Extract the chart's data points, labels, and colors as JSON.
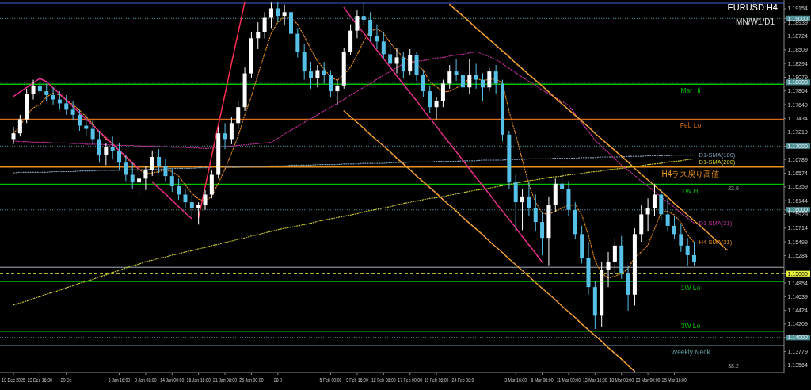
{
  "chart_data": {
    "type": "candlestick",
    "title": "EURUSD H4",
    "subtitle": "MN/W1/D1",
    "categories": [
      "19 Dec 2025",
      null,
      null,
      null,
      "23 Dec 16:00",
      null,
      null,
      null,
      "29 De",
      null,
      null,
      null,
      null,
      null,
      null,
      null,
      "6 Jan 16:00",
      null,
      null,
      null,
      "9 Jan 08:00",
      null,
      null,
      null,
      "14 Jan 00:00",
      null,
      null,
      null,
      "16 Jan 16:00",
      null,
      null,
      null,
      "21 Jan 08:00",
      null,
      null,
      null,
      "26 Jan 00:00",
      null,
      null,
      null,
      "28 J",
      null,
      null,
      null,
      null,
      null,
      null,
      null,
      "5 Feb 00:00",
      null,
      null,
      null,
      "9 Feb 16:00",
      null,
      null,
      null,
      "12 Feb 08:00",
      null,
      null,
      null,
      "17 Feb 00:00",
      null,
      null,
      null,
      "19 Feb 16:00",
      null,
      null,
      null,
      "24 Feb 08:0",
      null,
      null,
      null,
      null,
      null,
      null,
      null,
      "3 Mar 16:00",
      null,
      null,
      null,
      "6 Mar 08:00",
      null,
      null,
      null,
      "11 Mar 00:00",
      null,
      null,
      null,
      "13 Mar 16:00",
      null,
      null,
      null,
      "18 Mar 08:00",
      null,
      null,
      null,
      "23 Mar 00:00",
      null,
      null,
      null,
      "25 Mar 16:00",
      null,
      null,
      null,
      null,
      null,
      null,
      null,
      null,
      null,
      null,
      null,
      null,
      null,
      null,
      null,
      null
    ],
    "ohlc": [
      [
        1.1711,
        1.173,
        1.1703,
        1.172
      ],
      [
        1.172,
        1.1749,
        1.1715,
        1.1742
      ],
      [
        1.1742,
        1.179,
        1.1736,
        1.1782
      ],
      [
        1.1782,
        1.1804,
        1.1773,
        1.1795
      ],
      [
        1.1795,
        1.1809,
        1.178,
        1.1786
      ],
      [
        1.1786,
        1.1798,
        1.177,
        1.178
      ],
      [
        1.178,
        1.1792,
        1.1765,
        1.1773
      ],
      [
        1.1773,
        1.1786,
        1.1757,
        1.1767
      ],
      [
        1.1767,
        1.178,
        1.1749,
        1.1757
      ],
      [
        1.1757,
        1.177,
        1.174,
        1.1749
      ],
      [
        1.1749,
        1.1757,
        1.1724,
        1.1732
      ],
      [
        1.1732,
        1.1749,
        1.1715,
        1.1727
      ],
      [
        1.1727,
        1.1742,
        1.1703,
        1.1711
      ],
      [
        1.1711,
        1.1724,
        1.1674,
        1.1686
      ],
      [
        1.1686,
        1.1705,
        1.167,
        1.1699
      ],
      [
        1.1699,
        1.1715,
        1.168,
        1.1693
      ],
      [
        1.1693,
        1.1705,
        1.1662,
        1.1674
      ],
      [
        1.1674,
        1.1686,
        1.1645,
        1.1655
      ],
      [
        1.1655,
        1.1674,
        1.1633,
        1.1643
      ],
      [
        1.1643,
        1.1655,
        1.1621,
        1.1649
      ],
      [
        1.1649,
        1.1668,
        1.1631,
        1.1662
      ],
      [
        1.1662,
        1.1693,
        1.1653,
        1.1683
      ],
      [
        1.1683,
        1.1695,
        1.1658,
        1.1668
      ],
      [
        1.1668,
        1.168,
        1.1645,
        1.1653
      ],
      [
        1.1653,
        1.1665,
        1.1628,
        1.1637
      ],
      [
        1.1637,
        1.1649,
        1.1616,
        1.1624
      ],
      [
        1.1624,
        1.1633,
        1.1603,
        1.1612
      ],
      [
        1.1612,
        1.1624,
        1.1591,
        1.1603
      ],
      [
        1.1603,
        1.1612,
        1.1577,
        1.1608
      ],
      [
        1.1608,
        1.1631,
        1.16,
        1.1624
      ],
      [
        1.1624,
        1.1662,
        1.1618,
        1.1655
      ],
      [
        1.1655,
        1.173,
        1.1649,
        1.172
      ],
      [
        1.172,
        1.1736,
        1.1695,
        1.1711
      ],
      [
        1.1711,
        1.1745,
        1.1703,
        1.1736
      ],
      [
        1.1736,
        1.177,
        1.1727,
        1.1761
      ],
      [
        1.1761,
        1.1823,
        1.1755,
        1.1814
      ],
      [
        1.1814,
        1.1879,
        1.1807,
        1.1869
      ],
      [
        1.1869,
        1.1894,
        1.1852,
        1.1879
      ],
      [
        1.1879,
        1.191,
        1.1869,
        1.1901
      ],
      [
        1.1901,
        1.1925,
        1.1885,
        1.1916
      ],
      [
        1.1916,
        1.1926,
        1.1894,
        1.1904
      ],
      [
        1.1904,
        1.1922,
        1.1889,
        1.191
      ],
      [
        1.191,
        1.1919,
        1.1869,
        1.1876
      ],
      [
        1.1876,
        1.1885,
        1.1839,
        1.1848
      ],
      [
        1.1848,
        1.186,
        1.1804,
        1.1817
      ],
      [
        1.1817,
        1.1832,
        1.179,
        1.1807
      ],
      [
        1.1807,
        1.1827,
        1.1792,
        1.1819
      ],
      [
        1.1819,
        1.1832,
        1.1798,
        1.1811
      ],
      [
        1.1811,
        1.1819,
        1.1777,
        1.1786
      ],
      [
        1.1786,
        1.1804,
        1.1765,
        1.1795
      ],
      [
        1.1795,
        1.1854,
        1.179,
        1.1848
      ],
      [
        1.1848,
        1.1891,
        1.1842,
        1.1881
      ],
      [
        1.1881,
        1.1914,
        1.1869,
        1.1904
      ],
      [
        1.1904,
        1.1925,
        1.1889,
        1.1898
      ],
      [
        1.1898,
        1.191,
        1.1864,
        1.1873
      ],
      [
        1.1873,
        1.1891,
        1.1852,
        1.1864
      ],
      [
        1.1864,
        1.1879,
        1.1836,
        1.1844
      ],
      [
        1.1844,
        1.186,
        1.1819,
        1.1829
      ],
      [
        1.1829,
        1.1854,
        1.1814,
        1.1839
      ],
      [
        1.1839,
        1.1848,
        1.1807,
        1.1817
      ],
      [
        1.1817,
        1.1852,
        1.1811,
        1.1842
      ],
      [
        1.1842,
        1.1848,
        1.1802,
        1.1811
      ],
      [
        1.1811,
        1.1819,
        1.1777,
        1.1786
      ],
      [
        1.1786,
        1.1795,
        1.1752,
        1.1761
      ],
      [
        1.1761,
        1.1777,
        1.1742,
        1.177
      ],
      [
        1.177,
        1.1804,
        1.1761,
        1.1798
      ],
      [
        1.1798,
        1.1827,
        1.179,
        1.1817
      ],
      [
        1.1817,
        1.1836,
        1.1802,
        1.1811
      ],
      [
        1.1811,
        1.1819,
        1.1777,
        1.1792
      ],
      [
        1.1792,
        1.1837,
        1.1782,
        1.1811
      ],
      [
        1.1811,
        1.1829,
        1.179,
        1.1804
      ],
      [
        1.1804,
        1.1814,
        1.177,
        1.1792
      ],
      [
        1.1792,
        1.1823,
        1.1786,
        1.1817
      ],
      [
        1.1817,
        1.1827,
        1.1782,
        1.1798
      ],
      [
        1.1798,
        1.1804,
        1.1708,
        1.1718
      ],
      [
        1.1718,
        1.1724,
        1.1633,
        1.1643
      ],
      [
        1.1643,
        1.1655,
        1.1566,
        1.1612
      ],
      [
        1.1612,
        1.1633,
        1.1568,
        1.1621
      ],
      [
        1.1621,
        1.1645,
        1.1591,
        1.1603
      ],
      [
        1.1603,
        1.1624,
        1.1566,
        1.1581
      ],
      [
        1.1581,
        1.1596,
        1.1529,
        1.1556
      ],
      [
        1.1556,
        1.1621,
        1.1513,
        1.1608
      ],
      [
        1.1608,
        1.1649,
        1.1596,
        1.1641
      ],
      [
        1.1641,
        1.1668,
        1.1624,
        1.1633
      ],
      [
        1.1633,
        1.1645,
        1.1591,
        1.16
      ],
      [
        1.16,
        1.1612,
        1.1554,
        1.1562
      ],
      [
        1.1562,
        1.1575,
        1.1516,
        1.1525
      ],
      [
        1.1525,
        1.155,
        1.1467,
        1.1479
      ],
      [
        1.1479,
        1.1488,
        1.1413,
        1.1434
      ],
      [
        1.1434,
        1.1519,
        1.1417,
        1.1506
      ],
      [
        1.1506,
        1.1534,
        1.1479,
        1.1519
      ],
      [
        1.1519,
        1.1556,
        1.15,
        1.1544
      ],
      [
        1.1544,
        1.1559,
        1.1492,
        1.15
      ],
      [
        1.15,
        1.1513,
        1.1442,
        1.1467
      ],
      [
        1.1467,
        1.1571,
        1.145,
        1.1562
      ],
      [
        1.1562,
        1.1608,
        1.155,
        1.1593
      ],
      [
        1.1593,
        1.1618,
        1.1566,
        1.1603
      ],
      [
        1.1603,
        1.1641,
        1.1591,
        1.1624
      ],
      [
        1.1624,
        1.1633,
        1.1583,
        1.1593
      ],
      [
        1.1593,
        1.1618,
        1.1566,
        1.1575
      ],
      [
        1.1575,
        1.1591,
        1.1554,
        1.1562
      ],
      [
        1.1562,
        1.1578,
        1.1534,
        1.1544
      ],
      [
        1.1544,
        1.1556,
        1.1513,
        1.1529
      ],
      [
        1.1529,
        1.155,
        1.1513,
        1.1519
      ],
      null,
      null,
      null,
      null,
      null,
      null,
      null,
      null,
      null,
      null,
      null,
      null,
      null
    ],
    "colors": [
      "#ffffff",
      "#ffffff",
      "#ffffff",
      "#ffffff",
      "#56c0e6",
      "#56c0e6",
      "#56c0e6",
      "#56c0e6",
      "#56c0e6",
      "#56c0e6",
      "#56c0e6",
      "#56c0e6",
      "#56c0e6",
      "#56c0e6",
      "#ffffff",
      "#56c0e6",
      "#56c0e6",
      "#56c0e6",
      "#56c0e6",
      "#ffffff",
      "#ffffff",
      "#ffffff",
      "#56c0e6",
      "#56c0e6",
      "#56c0e6",
      "#56c0e6",
      "#56c0e6",
      "#56c0e6",
      "#ffffff",
      "#ffffff",
      "#ffffff",
      "#ffffff",
      "#56c0e6",
      "#ffffff",
      "#ffffff",
      "#ffffff",
      "#ffffff",
      "#ffffff",
      "#ffffff",
      "#ffffff",
      "#56c0e6",
      "#ffffff",
      "#56c0e6",
      "#56c0e6",
      "#56c0e6",
      "#56c0e6",
      "#ffffff",
      "#56c0e6",
      "#56c0e6",
      "#ffffff",
      "#ffffff",
      "#ffffff",
      "#ffffff",
      "#56c0e6",
      "#56c0e6",
      "#56c0e6",
      "#56c0e6",
      "#56c0e6",
      "#ffffff",
      "#56c0e6",
      "#ffffff",
      "#56c0e6",
      "#56c0e6",
      "#56c0e6",
      "#ffffff",
      "#ffffff",
      "#ffffff",
      "#56c0e6",
      "#56c0e6",
      "#ffffff",
      "#56c0e6",
      "#56c0e6",
      "#ffffff",
      "#56c0e6",
      "#56c0e6",
      "#56c0e6",
      "#56c0e6",
      "#ffffff",
      "#56c0e6",
      "#56c0e6",
      "#56c0e6",
      "#ffffff",
      "#ffffff",
      "#56c0e6",
      "#56c0e6",
      "#56c0e6",
      "#56c0e6",
      "#56c0e6",
      "#56c0e6",
      "#ffffff",
      "#ffffff",
      "#ffffff",
      "#56c0e6",
      "#56c0e6",
      "#ffffff",
      "#ffffff",
      "#ffffff",
      "#ffffff",
      "#56c0e6",
      "#56c0e6",
      "#56c0e6",
      "#56c0e6",
      "#56c0e6",
      "#56c0e6",
      null,
      null,
      null,
      null,
      null,
      null,
      null,
      null,
      null,
      null,
      null,
      null,
      null
    ],
    "series": [
      {
        "name": "D1-SMA(100)",
        "type": "line",
        "color": "#7d9cb8",
        "line_style": "dotted",
        "values": [
          1.1658,
          1.1659,
          1.1659,
          1.1659,
          1.1659,
          1.1659,
          1.166,
          1.166,
          1.166,
          1.166,
          1.1661,
          1.1661,
          1.1661,
          1.1662,
          1.1662,
          1.1662,
          1.1662,
          1.1663,
          1.1663,
          1.1663,
          1.1663,
          1.1664,
          1.1664,
          1.1664,
          1.1665,
          1.1665,
          1.1665,
          1.1665,
          1.1666,
          1.1666,
          1.1666,
          null,
          1.1667,
          1.1667,
          1.1667,
          1.1668,
          1.1668,
          1.1668,
          1.1668,
          1.1669,
          1.1669,
          1.1669,
          1.167,
          1.167,
          1.167,
          1.167,
          1.1671,
          1.1671,
          1.1671,
          1.1671,
          1.1672,
          1.1672,
          1.1672,
          1.1673,
          1.1673,
          1.1673,
          1.1673,
          1.1674,
          1.1674,
          1.1674,
          1.1675,
          1.1675,
          1.1675,
          1.1675,
          1.1676,
          1.1676,
          1.1676,
          1.1676,
          1.1677,
          1.1677,
          1.1677,
          1.1678,
          1.1678,
          1.1678,
          1.1678,
          1.1679,
          1.1679,
          1.1679,
          1.168,
          1.168,
          1.168,
          1.168,
          1.1681,
          1.1681,
          1.1681,
          1.1681,
          1.1682,
          1.1682,
          1.1682,
          1.1683,
          1.1683,
          1.1683,
          1.1683,
          1.1684,
          1.1684,
          1.1684,
          1.1685,
          1.1685,
          1.1685,
          1.1685,
          1.1686,
          1.1686,
          1.1686,
          1.1686,
          null,
          null,
          null,
          null,
          null,
          null,
          null,
          null,
          null,
          null,
          null,
          null,
          null
        ]
      },
      {
        "name": "D1-SMA(200)",
        "type": "line",
        "color": "#c8c832",
        "line_style": "dotted",
        "values": [
          1.1451,
          1.1454,
          1.1457,
          1.1461,
          1.1464,
          1.1468,
          1.1471,
          1.1474,
          1.1478,
          1.1481,
          1.1485,
          1.1488,
          1.1491,
          1.1495,
          1.1498,
          1.1502,
          1.1505,
          1.1509,
          1.1512,
          1.1515,
          1.1519,
          1.1521,
          1.1524,
          1.1526,
          1.1529,
          1.1531,
          1.1534,
          1.1536,
          1.1539,
          1.1541,
          1.1544,
          1.1546,
          1.1549,
          1.1551,
          1.1554,
          1.1556,
          1.1559,
          1.1561,
          1.1564,
          1.1566,
          1.1569,
          1.1571,
          1.1573,
          1.1575,
          1.1577,
          1.1579,
          1.1582,
          1.1584,
          1.1586,
          1.1588,
          1.159,
          1.1592,
          1.1594,
          1.1597,
          1.1599,
          1.1601,
          1.1603,
          1.1605,
          1.1608,
          1.161,
          1.1612,
          1.1614,
          1.1616,
          1.1618,
          1.1619,
          1.1621,
          1.1623,
          1.1625,
          1.1627,
          1.1629,
          1.1631,
          1.1632,
          1.1634,
          1.1636,
          1.1638,
          1.164,
          1.1642,
          1.1644,
          1.1646,
          1.1647,
          1.1649,
          1.1651,
          1.1652,
          1.1653,
          1.1655,
          1.1656,
          1.1657,
          1.1659,
          1.166,
          1.1661,
          1.1663,
          1.1664,
          1.1665,
          1.1667,
          1.1668,
          1.1669,
          1.1671,
          1.1672,
          1.1673,
          1.1675,
          1.1676,
          1.1677,
          1.1679,
          1.168,
          null,
          null,
          null,
          null,
          null,
          null,
          null,
          null,
          null,
          null,
          null,
          null,
          null
        ]
      },
      {
        "name": "D1-SMA(21)",
        "type": "line",
        "color": "#c0309a",
        "line_style": "dotted",
        "values": [
          1.1708,
          1.1707,
          1.1707,
          1.1706,
          1.1706,
          1.1706,
          1.1705,
          1.1705,
          1.1705,
          1.1704,
          1.1704,
          1.1703,
          1.1703,
          1.1703,
          1.1702,
          1.1702,
          1.1701,
          1.1701,
          1.1701,
          1.17,
          1.17,
          1.17,
          1.1699,
          1.1699,
          1.1698,
          1.1698,
          1.1698,
          1.1697,
          1.1697,
          1.1696,
          1.1697,
          1.1698,
          1.1699,
          1.17,
          1.1701,
          1.1702,
          1.1703,
          1.1704,
          1.1705,
          1.1706,
          1.1712,
          1.1719,
          1.1725,
          1.1731,
          1.1737,
          1.1743,
          1.1749,
          1.1755,
          1.1761,
          1.1767,
          1.1773,
          1.178,
          1.1786,
          1.1792,
          1.1798,
          1.1805,
          1.1811,
          1.1817,
          1.1823,
          1.1829,
          1.1831,
          1.1833,
          1.1834,
          1.1836,
          1.1838,
          1.1839,
          1.1841,
          1.1843,
          1.1844,
          1.1846,
          1.1848,
          1.1844,
          1.184,
          1.1836,
          1.1829,
          1.1822,
          1.1815,
          1.1808,
          1.1801,
          1.1795,
          1.1788,
          1.1782,
          1.1776,
          1.177,
          1.1764,
          1.175,
          1.1736,
          1.1723,
          1.1709,
          1.1699,
          1.169,
          1.168,
          1.167,
          1.1662,
          1.1654,
          1.1645,
          1.1637,
          1.1629,
          1.162,
          1.1612,
          1.1604,
          1.1595,
          1.1587,
          1.1579,
          null,
          null,
          null,
          null,
          null,
          null,
          null,
          null,
          null,
          null,
          null,
          null,
          null
        ]
      },
      {
        "name": "H4-SMA(21)",
        "type": "line",
        "color": "#e08a20",
        "line_style": "dotted",
        "values": [
          1.172,
          1.1731,
          1.1749,
          1.176,
          1.1765,
          1.1777,
          1.1783,
          1.178,
          1.1772,
          1.1765,
          1.1756,
          1.1746,
          1.1735,
          1.1721,
          1.1711,
          1.1704,
          1.1693,
          1.1682,
          1.1673,
          1.1663,
          1.1657,
          1.1658,
          1.166,
          1.1663,
          1.166,
          1.1653,
          1.1639,
          1.1626,
          1.1617,
          1.1614,
          1.1621,
          1.1642,
          1.1664,
          1.1689,
          1.1716,
          1.1749,
          1.1778,
          1.1812,
          1.1845,
          1.1877,
          1.1894,
          1.1903,
          1.1901,
          1.1891,
          1.1872,
          1.1852,
          1.1833,
          1.1821,
          1.1808,
          1.1803,
          1.1812,
          1.1824,
          1.1843,
          1.1865,
          1.188,
          1.1884,
          1.1877,
          1.1862,
          1.185,
          1.1839,
          1.1834,
          1.1828,
          1.1819,
          1.1801,
          1.1793,
          1.1785,
          1.1786,
          1.1791,
          1.1797,
          1.1806,
          1.1807,
          1.1802,
          1.1805,
          1.1805,
          1.1799,
          1.1754,
          1.1718,
          1.1678,
          1.1639,
          1.1612,
          1.1595,
          1.1593,
          1.1598,
          1.1603,
          1.1607,
          1.1608,
          1.1592,
          1.156,
          1.152,
          1.1501,
          1.1493,
          1.1496,
          1.15,
          1.1508,
          1.1526,
          1.1534,
          1.1545,
          1.157,
          1.1596,
          1.1598,
          1.1592,
          1.158,
          1.1561,
          1.1549,
          null,
          null,
          null,
          null,
          null,
          null,
          null,
          null,
          null,
          null,
          null,
          null,
          null
        ]
      },
      {
        "type": "line",
        "color": "#f0a030",
        "line_style": "solid",
        "values": [
          null,
          null,
          null,
          null,
          null,
          null,
          null,
          null,
          null,
          null,
          null,
          null,
          null,
          null,
          null,
          null,
          null,
          null,
          null,
          null,
          null,
          null,
          null,
          null,
          null,
          null,
          null,
          null,
          null,
          null,
          null,
          null,
          null,
          null,
          null,
          null,
          null,
          null,
          null,
          null,
          null,
          null,
          null,
          null,
          null,
          null,
          null,
          null,
          null,
          null,
          null,
          null,
          null,
          null,
          null,
          null,
          null,
          null,
          null,
          null,
          null,
          null,
          null,
          null,
          null,
          null,
          1.1922,
          1.1913,
          1.1904,
          1.1895,
          1.1885,
          1.1876,
          1.1867,
          1.1858,
          1.1849,
          1.184,
          1.183,
          1.1821,
          1.1812,
          1.1803,
          1.1794,
          1.1785,
          1.1775,
          1.1766,
          1.1757,
          1.1748,
          1.1739,
          1.173,
          1.172,
          1.1711,
          1.1702,
          1.1693,
          1.1684,
          1.1675,
          1.1665,
          1.1656,
          1.1647,
          1.1638,
          1.1629,
          1.162,
          1.161,
          1.1601,
          1.1592,
          1.1583,
          1.1574,
          1.1565,
          1.1555,
          1.1546,
          1.1537,
          null,
          null,
          null,
          null,
          null,
          null,
          null,
          null
        ]
      },
      {
        "type": "line",
        "color": "#f0a030",
        "line_style": "solid",
        "values": [
          null,
          null,
          null,
          null,
          null,
          null,
          null,
          null,
          null,
          null,
          null,
          null,
          null,
          null,
          null,
          null,
          null,
          null,
          null,
          null,
          null,
          null,
          null,
          null,
          null,
          null,
          null,
          null,
          null,
          null,
          null,
          null,
          null,
          null,
          null,
          null,
          null,
          null,
          null,
          null,
          null,
          null,
          null,
          null,
          null,
          null,
          null,
          null,
          null,
          null,
          1.1755,
          1.1746,
          1.1737,
          1.1728,
          1.1718,
          1.1709,
          1.17,
          1.1691,
          1.1681,
          1.1672,
          1.1663,
          1.1653,
          1.1644,
          1.1635,
          1.1626,
          1.1616,
          1.1607,
          1.1598,
          1.1588,
          1.1579,
          1.157,
          1.1561,
          1.1551,
          1.1542,
          1.1533,
          1.1523,
          1.1514,
          1.1505,
          1.1496,
          1.1486,
          1.1477,
          1.1468,
          1.1459,
          1.1449,
          1.144,
          1.1431,
          1.1421,
          1.1412,
          1.1403,
          1.1394,
          1.1384,
          1.1375,
          1.1366,
          1.1356,
          1.1347,
          null,
          null,
          null,
          null,
          null,
          null,
          null,
          null,
          null,
          null,
          null,
          null,
          null,
          null,
          null,
          null,
          null,
          null,
          null,
          null,
          null,
          null
        ]
      },
      {
        "type": "line",
        "color": "#e8308c",
        "line_style": "solid",
        "values": [
          1.1778,
          1.1785,
          1.1792,
          1.1799,
          1.1806,
          1.1801,
          1.1791,
          1.1782,
          1.1772,
          1.1762,
          1.1752,
          1.1742,
          1.1733,
          1.1723,
          1.1713,
          1.1703,
          1.1693,
          1.1684,
          1.1674,
          1.1664,
          null,
          1.1644,
          1.1634,
          1.1625,
          1.1615,
          1.1605,
          1.1595,
          1.1586,
          null,
          null,
          null,
          null,
          null,
          null,
          null,
          null,
          null,
          null,
          null,
          null,
          null,
          null,
          null,
          null,
          null,
          null,
          null,
          null,
          null,
          null,
          1.1917,
          1.1903,
          1.189,
          1.1877,
          1.1864,
          1.185,
          1.1837,
          1.1824,
          1.181,
          1.1797,
          1.1784,
          1.1771,
          1.1757,
          1.1744,
          1.1731,
          1.1717,
          1.1704,
          1.1691,
          1.1678,
          1.1664,
          1.1651,
          1.1638,
          1.1625,
          1.1611,
          1.1598,
          1.1585,
          1.1572,
          1.1558,
          1.1545,
          1.1532,
          1.1518,
          null,
          null,
          null,
          null,
          null,
          null,
          null,
          null,
          null,
          null,
          null,
          null,
          null,
          null,
          null,
          null,
          null,
          null,
          null,
          null,
          null,
          null,
          null,
          null,
          null,
          null,
          null,
          null,
          null,
          null,
          null,
          null,
          null,
          null,
          null,
          null
        ]
      },
      {
        "type": "line",
        "color": "#ff3050",
        "line_style": "solid",
        "values": [
          null,
          null,
          null,
          null,
          null,
          null,
          null,
          null,
          null,
          null,
          null,
          null,
          null,
          null,
          null,
          null,
          null,
          null,
          null,
          null,
          null,
          null,
          null,
          null,
          null,
          null,
          null,
          null,
          1.1588,
          1.1636,
          1.1685,
          1.1733,
          1.1781,
          1.183,
          1.1878,
          1.1926,
          null,
          null,
          null,
          null,
          null,
          null,
          null,
          null,
          null,
          null,
          null,
          null,
          null,
          null,
          null,
          null,
          null,
          null,
          null,
          null,
          null,
          null,
          null,
          null,
          null,
          null,
          null,
          null,
          null,
          null,
          null,
          null,
          null,
          null,
          null,
          null,
          null,
          null,
          null,
          null,
          null,
          null,
          null,
          null,
          null,
          null,
          null,
          null,
          null,
          null,
          null,
          null,
          null,
          null,
          null,
          null,
          null,
          null,
          null,
          null,
          null,
          null,
          null,
          null,
          null,
          null,
          null,
          null,
          null,
          null,
          null,
          null,
          null,
          null,
          null,
          null,
          null,
          null,
          null,
          null,
          null
        ]
      }
    ],
    "ylim": [
      1.1345,
      1.1929
    ],
    "yticks": [
      1.13564,
      1.13779,
      {
        "value": 1.14,
        "label": "1.14000"
      },
      1.14209,
      1.14424,
      1.14639,
      1.14854,
      {
        "value": 1.15,
        "label": "1.15000"
      },
      1.15284,
      1.15499,
      1.15714,
      1.15929,
      {
        "value": 1.16,
        "label": "1.16000"
      },
      1.16144,
      1.16359,
      1.16574,
      1.16789,
      {
        "value": 1.17,
        "label": "1.17000"
      },
      1.17219,
      1.17434,
      1.17649,
      1.17864,
      {
        "value": 1.18,
        "label": "1.18000"
      },
      1.18079,
      1.18294,
      1.18509,
      1.18724,
      1.18939,
      {
        "value": 1.19,
        "label": "1.19000"
      },
      1.19154
    ],
    "ref_lines": [
      {
        "axis": "y",
        "value": 1.1924,
        "color": "#3a5fd8",
        "line_style": "solid"
      },
      {
        "axis": "y",
        "value": 1.19,
        "color": "#4f8f96",
        "line_style": "dotted"
      },
      {
        "axis": "y",
        "value": 1.18,
        "color": "#4f8f96",
        "line_style": "dotted"
      },
      {
        "axis": "y",
        "value": 1.17,
        "color": "#4f8f96",
        "line_style": "dotted"
      },
      {
        "axis": "y",
        "value": 1.16,
        "color": "#4f8f96",
        "line_style": "dotted"
      },
      {
        "axis": "y",
        "value": 1.151,
        "color": "#a8b0b8",
        "line_style": "solid"
      },
      {
        "axis": "y",
        "value": 1.15,
        "color": "#e8f040",
        "line_style": "dashed"
      },
      {
        "axis": "y",
        "value": 1.14,
        "color": "#4f8f96",
        "line_style": "dotted"
      },
      {
        "axis": "y",
        "value": 1.1797,
        "label": "Mar Hi",
        "color": "#00c000",
        "line_style": "solid"
      },
      {
        "axis": "y",
        "value": 1.1742,
        "label": "Feb Lo",
        "color": "#d2691e",
        "line_style": "solid"
      },
      {
        "axis": "y",
        "value": 1.1667,
        "label": "H4ラス戻り高値",
        "color": "#e6901e",
        "line_style": "solid"
      },
      {
        "axis": "y",
        "value": 1.164,
        "label": "1W Hi",
        "color": "#00c000",
        "line_style": "solid"
      },
      {
        "axis": "y",
        "value": 1.1488,
        "label": "1W Lo",
        "color": "#00c000",
        "line_style": "solid"
      },
      {
        "axis": "y",
        "value": 1.141,
        "label": "3W Lo",
        "color": "#00c000",
        "line_style": "solid"
      },
      {
        "axis": "y",
        "value": 1.1387,
        "label": "Weekly Neck",
        "color": "#5f9ea0",
        "line_style": "solid"
      }
    ],
    "annotations": [
      {
        "text": "23.6",
        "y": 1.1634
      },
      "38.2"
    ]
  }
}
